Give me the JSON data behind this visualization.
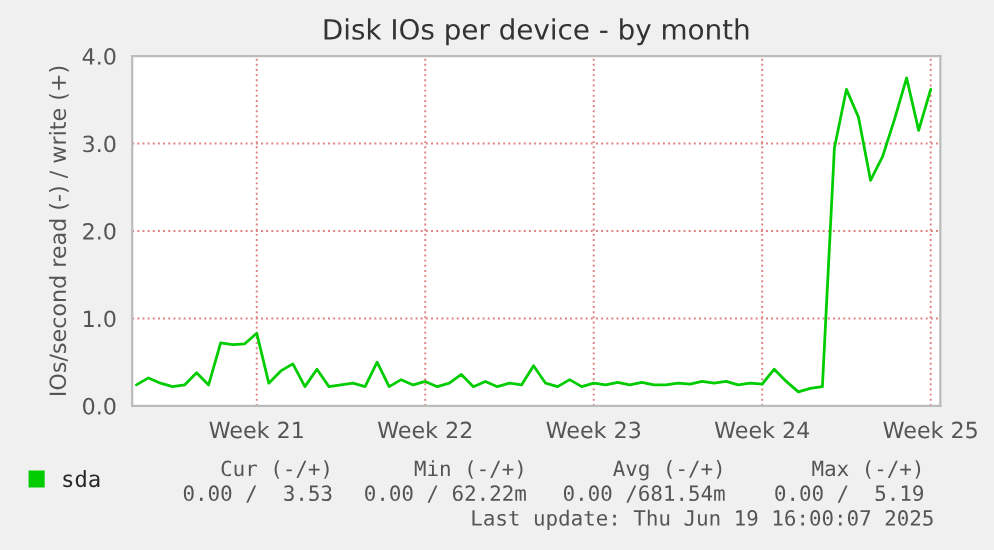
{
  "chart_data": {
    "type": "line",
    "title": "Disk IOs per device - by month",
    "ylabel": "IOs/second read (-) / write (+)",
    "categories": [
      null,
      null,
      null,
      null,
      null,
      null,
      null,
      null,
      null,
      null,
      "Week 21",
      null,
      null,
      null,
      null,
      null,
      null,
      null,
      null,
      null,
      null,
      null,
      null,
      null,
      "Week 22",
      null,
      null,
      null,
      null,
      null,
      null,
      null,
      null,
      null,
      null,
      null,
      null,
      null,
      "Week 23",
      null,
      null,
      null,
      null,
      null,
      null,
      null,
      null,
      null,
      null,
      null,
      null,
      null,
      "Week 24",
      null,
      null,
      null,
      null,
      null,
      null,
      null,
      null,
      null,
      null,
      null,
      null,
      null,
      "Week 25"
    ],
    "series": [
      {
        "name": "sda",
        "color": "#00cc00",
        "values": [
          0.24,
          0.32,
          0.26,
          0.22,
          0.24,
          0.38,
          0.24,
          0.72,
          0.7,
          0.71,
          0.83,
          0.26,
          0.4,
          0.48,
          0.22,
          0.42,
          0.22,
          0.24,
          0.26,
          0.22,
          0.5,
          0.22,
          0.3,
          0.24,
          0.28,
          0.22,
          0.26,
          0.36,
          0.22,
          0.28,
          0.22,
          0.26,
          0.24,
          0.46,
          0.26,
          0.22,
          0.3,
          0.22,
          0.26,
          0.24,
          0.27,
          0.24,
          0.27,
          0.24,
          0.24,
          0.26,
          0.25,
          0.28,
          0.26,
          0.28,
          0.24,
          0.26,
          0.25,
          0.42,
          0.28,
          0.16,
          0.2,
          0.22,
          2.95,
          3.62,
          3.3,
          2.58,
          2.85,
          3.28,
          3.75,
          3.15,
          3.62
        ]
      }
    ],
    "ylim": [
      0,
      4
    ],
    "yticks": [
      {
        "value": 0,
        "label": "0.0"
      },
      {
        "value": 1,
        "label": "1.0"
      },
      {
        "value": 2,
        "label": "2.0"
      },
      {
        "value": 3,
        "label": "3.0"
      },
      {
        "value": 4,
        "label": "4.0"
      }
    ],
    "grid": true,
    "legend": "bottom left",
    "annotations": [
      "Cur (-/+)",
      "Min (-/+)",
      "Avg (-/+)",
      "Max (-/+)",
      "0.00 /  3.53",
      "0.00 / 62.22m",
      "0.00 /681.54m",
      "0.00 /  5.19",
      "Last update: Thu Jun 19 16:00:07 2025"
    ]
  }
}
